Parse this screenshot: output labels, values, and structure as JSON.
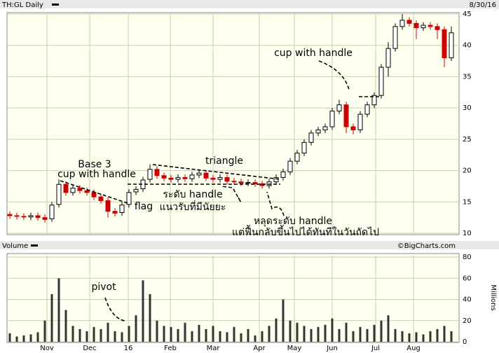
{
  "chart_data": [
    {
      "type": "candlestick",
      "title": "TH:GL Daily",
      "date": "8/30/16",
      "credit": "©BigCharts.com",
      "open": [
        13.0,
        12.8,
        12.7,
        12.6,
        12.8,
        12.5,
        12.3,
        14.6,
        17.8,
        16.5,
        17.2,
        16.8,
        16.5,
        15.8,
        15.2,
        13.5,
        13.3,
        14.6,
        16.6,
        17.1,
        18.6,
        20.2,
        19.2,
        18.8,
        18.6,
        18.9,
        18.7,
        19.3,
        19.6,
        18.8,
        18.6,
        18.9,
        18.3,
        18.2,
        18.0,
        18.1,
        17.9,
        17.6,
        18.2,
        18.9,
        19.8,
        21.5,
        22.8,
        24.5,
        26.0,
        26.5,
        27.0,
        29.5,
        30.5,
        27.0,
        26.5,
        29.0,
        30.5,
        32.0,
        36.5,
        39.5,
        43.0,
        44.0,
        43.5,
        42.8,
        43.2,
        43.0,
        42.5,
        38.0
      ],
      "high": [
        13.5,
        13.3,
        13.2,
        13.3,
        13.3,
        13.0,
        15.0,
        18.6,
        18.3,
        17.7,
        17.7,
        17.3,
        17.0,
        16.3,
        15.7,
        14.0,
        15.0,
        17.0,
        17.5,
        19.0,
        21.0,
        20.7,
        19.7,
        19.3,
        19.4,
        19.4,
        19.8,
        20.1,
        20.1,
        19.3,
        19.4,
        19.4,
        18.8,
        18.7,
        18.6,
        18.6,
        18.4,
        18.7,
        19.4,
        20.3,
        22.0,
        23.3,
        25.0,
        26.5,
        27.0,
        27.5,
        30.0,
        31.3,
        31.0,
        27.5,
        29.5,
        31.0,
        32.5,
        37.0,
        40.5,
        43.5,
        45.0,
        44.5,
        44.0,
        43.7,
        43.7,
        43.5,
        43.0,
        43.0
      ],
      "low": [
        12.3,
        12.2,
        12.1,
        12.1,
        12.0,
        11.7,
        11.8,
        14.1,
        16.0,
        16.0,
        16.3,
        16.0,
        15.3,
        14.7,
        12.5,
        12.7,
        12.8,
        14.1,
        16.1,
        16.6,
        18.1,
        18.7,
        18.3,
        18.1,
        18.1,
        18.2,
        18.2,
        18.8,
        18.3,
        18.1,
        18.1,
        17.8,
        17.7,
        17.5,
        17.5,
        17.4,
        17.1,
        17.1,
        17.7,
        18.4,
        19.3,
        21.0,
        22.3,
        24.0,
        25.5,
        26.0,
        26.5,
        29.0,
        26.0,
        25.8,
        26.0,
        28.5,
        30.0,
        31.5,
        35.0,
        39.0,
        42.5,
        43.0,
        41.0,
        42.3,
        42.5,
        41.0,
        36.5,
        37.5
      ],
      "close": [
        12.8,
        12.7,
        12.6,
        12.8,
        12.5,
        12.2,
        14.5,
        17.8,
        16.5,
        17.2,
        16.8,
        16.5,
        15.8,
        15.2,
        13.5,
        13.2,
        14.5,
        16.5,
        17.0,
        18.5,
        20.2,
        19.2,
        18.8,
        18.6,
        18.9,
        18.7,
        19.3,
        19.6,
        18.8,
        18.6,
        18.9,
        18.3,
        18.2,
        18.0,
        18.1,
        17.9,
        17.6,
        18.2,
        18.9,
        19.8,
        21.5,
        22.8,
        24.5,
        26.0,
        26.5,
        27.0,
        29.5,
        30.5,
        27.0,
        26.5,
        29.0,
        30.5,
        32.0,
        36.5,
        39.5,
        43.0,
        44.0,
        43.5,
        42.8,
        43.2,
        43.0,
        42.5,
        38.0,
        42.0
      ],
      "up_color": "#000000",
      "down_color": "#cc0000",
      "xlim": [
        -0.4,
        63.6
      ],
      "xticks": [
        {
          "value": 5.3,
          "label": "Nov"
        },
        {
          "value": 11.4,
          "label": "Dec"
        },
        {
          "value": 16.9,
          "label": "16"
        },
        {
          "value": 22.9,
          "label": "Feb"
        },
        {
          "value": 29,
          "label": "Mar"
        },
        {
          "value": 35.6,
          "label": "Apr"
        },
        {
          "value": 40.6,
          "label": "May"
        },
        {
          "value": 46,
          "label": "Jun"
        },
        {
          "value": 52.2,
          "label": "Jul"
        },
        {
          "value": 57.6,
          "label": "Aug"
        }
      ],
      "ylim": [
        10,
        45
      ],
      "yticks": [
        10,
        15,
        20,
        25,
        30,
        35,
        40,
        45
      ],
      "grid": true,
      "annotations": [
        "Base 3",
        "cup with handle",
        "flag",
        "triangle",
        "ระดับ handle",
        "แนวรับที่มีนัยยะ",
        "หลุดระดับ handle",
        "แต่ฟื้นกลับขึ้นไปได้ทันทีในวันถัดไป",
        "cup with handle"
      ]
    },
    {
      "type": "bar",
      "title": "Volume",
      "ylabel": "Millions",
      "values": [
        8,
        5,
        6,
        7,
        9,
        20,
        45,
        60,
        30,
        15,
        12,
        10,
        14,
        12,
        18,
        10,
        9,
        15,
        25,
        58,
        45,
        20,
        15,
        14,
        12,
        18,
        10,
        16,
        12,
        15,
        10,
        9,
        14,
        8,
        12,
        6,
        10,
        15,
        22,
        40,
        20,
        18,
        15,
        12,
        14,
        16,
        22,
        12,
        18,
        10,
        14,
        12,
        16,
        20,
        25,
        12,
        10,
        8,
        9,
        7,
        10,
        12,
        15,
        10
      ],
      "color": "#333333",
      "ylim": [
        0,
        80
      ],
      "yticks": [
        0,
        20,
        40,
        60,
        80
      ],
      "grid": true,
      "annotations": [
        "pivot"
      ]
    }
  ]
}
